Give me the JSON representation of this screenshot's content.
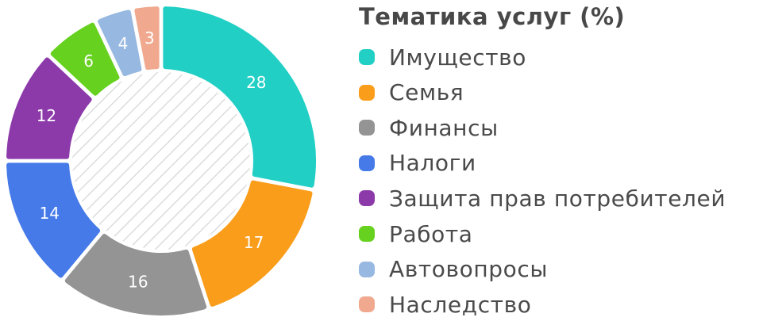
{
  "chart_data": {
    "type": "pie",
    "donut": true,
    "title": "Тематика услуг (%)",
    "categories": [
      "Имущество",
      "Семья",
      "Финансы",
      "Налоги",
      "Защита прав потребителей",
      "Работа",
      "Автовопросы",
      "Наследство"
    ],
    "values": [
      28,
      17,
      16,
      14,
      12,
      6,
      4,
      3
    ],
    "colors": [
      "#22cfc5",
      "#fa9d1a",
      "#949494",
      "#457ae8",
      "#8c3aaa",
      "#66d11f",
      "#97b8e0",
      "#f0a98f"
    ],
    "data_labels": [
      "28",
      "17",
      "16",
      "14",
      "12",
      "6",
      "4",
      "3"
    ],
    "legend_position": "right"
  }
}
